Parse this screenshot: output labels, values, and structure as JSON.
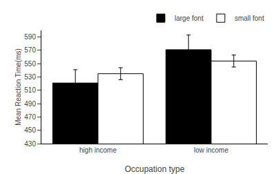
{
  "chart_data": {
    "type": "bar",
    "categories": [
      "high income",
      "low income"
    ],
    "series": [
      {
        "name": "large font",
        "color": "black",
        "values": [
          521,
          571
        ],
        "errors": [
          20,
          22
        ]
      },
      {
        "name": "small font",
        "color": "white",
        "values": [
          535,
          554
        ],
        "errors": [
          9,
          9
        ]
      }
    ],
    "xlabel": "Occupation type",
    "ylabel": "Mean Reaction Time(ms)",
    "ylim": [
      430,
      600
    ],
    "yticks": [
      430,
      450,
      470,
      490,
      510,
      530,
      550,
      570,
      590
    ],
    "grid": false,
    "legend": "upper right"
  }
}
